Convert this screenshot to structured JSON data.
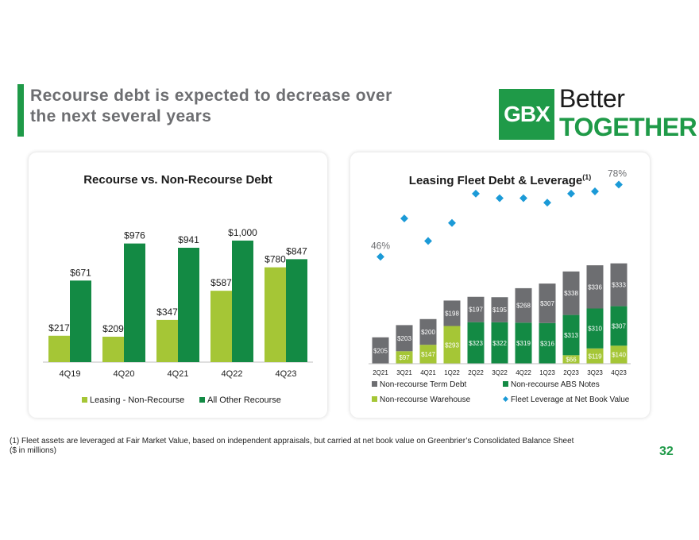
{
  "header": {
    "title_line1": "Recourse debt is expected to decrease over",
    "title_line2": "the next several years"
  },
  "logo": {
    "mark": "GBX",
    "word1": "Better",
    "word2": "TOGETHER"
  },
  "colors": {
    "light_green": "#a5c636",
    "dark_green": "#138a44",
    "gray": "#6d6e71",
    "blue": "#1b9ad7",
    "brand_green": "#1f9a48"
  },
  "chart_data": [
    {
      "type": "bar",
      "title": "Recourse vs. Non-Recourse Debt",
      "categories": [
        "4Q19",
        "4Q20",
        "4Q21",
        "4Q22",
        "4Q23"
      ],
      "series": [
        {
          "name": "Leasing - Non-Recourse",
          "values": [
            217,
            209,
            347,
            587,
            780
          ],
          "labels": [
            "$217",
            "$209",
            "$347",
            "$587",
            "$780"
          ]
        },
        {
          "name": "All Other Recourse",
          "values": [
            671,
            976,
            941,
            1000,
            847
          ],
          "labels": [
            "$671",
            "$976",
            "$941",
            "$1,000",
            "$847"
          ]
        }
      ],
      "ylim": [
        0,
        1150
      ],
      "legend": "bottom"
    },
    {
      "type": "bar",
      "stacked": true,
      "title": "Leasing Fleet Debt & Leverage",
      "title_sup": "(1)",
      "categories": [
        "2Q21",
        "3Q21",
        "4Q21",
        "1Q22",
        "2Q22",
        "3Q22",
        "4Q22",
        "1Q23",
        "2Q23",
        "3Q23",
        "4Q23"
      ],
      "series": [
        {
          "name": "Non-recourse Warehouse",
          "values": [
            0,
            97,
            147,
            293,
            0,
            0,
            0,
            0,
            66,
            119,
            140
          ],
          "labels": [
            "",
            "$97",
            "$147",
            "$293",
            "",
            "",
            "",
            "",
            "$66",
            "$119",
            "$140"
          ]
        },
        {
          "name": "Non-recourse ABS Notes",
          "values": [
            0,
            0,
            0,
            0,
            323,
            322,
            319,
            316,
            313,
            310,
            307
          ],
          "labels": [
            "",
            "",
            "",
            "",
            "$323",
            "$322",
            "$319",
            "$316",
            "$313",
            "$310",
            "$307"
          ]
        },
        {
          "name": "Non-recourse Term Debt",
          "values": [
            205,
            203,
            200,
            198,
            197,
            195,
            268,
            307,
            338,
            336,
            333
          ],
          "labels": [
            "$205",
            "$203",
            "$200",
            "$198",
            "$197",
            "$195",
            "$268",
            "$307",
            "$338",
            "$336",
            "$333"
          ]
        }
      ],
      "line_series": {
        "name": "Fleet Leverage at Net Book Value",
        "values": [
          46,
          63,
          53,
          61,
          74,
          72,
          72,
          70,
          74,
          75,
          78
        ],
        "point_labels": [
          "46%",
          "",
          "",
          "",
          "",
          "",
          "",
          "",
          "",
          "",
          "78%"
        ],
        "ylim": [
          0,
          100
        ]
      },
      "ylim": [
        0,
        850
      ],
      "legend": "bottom"
    }
  ],
  "footnote": {
    "line1": "(1) Fleet assets are leveraged at Fair Market Value, based on independent appraisals, but carried at net book value on Greenbrier’s Consolidated Balance Sheet",
    "line2": "($ in millions)"
  },
  "page_number": "32"
}
